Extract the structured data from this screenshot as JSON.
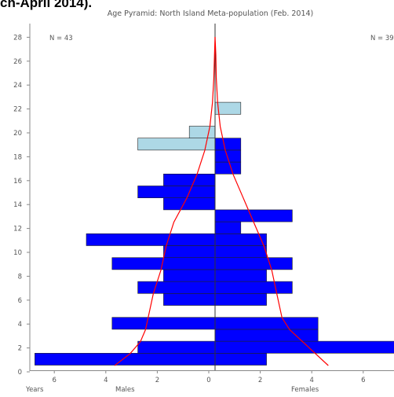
{
  "caption": "ch-April 2014).",
  "chart_data": {
    "type": "bar",
    "orientation": "horizontal",
    "title": "Age Pyramid: North Island Meta-population (Feb. 2014)",
    "y_ticks": [
      0,
      2,
      4,
      6,
      8,
      10,
      12,
      14,
      16,
      18,
      20,
      22,
      24,
      26,
      28
    ],
    "x_tick_labels": [
      "6",
      "4",
      "2",
      "0",
      "2",
      "4",
      "6"
    ],
    "xlim": [
      -7,
      7
    ],
    "ylim": [
      -0.5,
      29
    ],
    "y_axis_label": "Years",
    "left_label": "Males",
    "right_label": "Females",
    "n_left": "N = 43",
    "n_right": "N = 39",
    "colors": {
      "adult": "#0000ff",
      "young": "#add8e6",
      "curve": "#ff0000"
    },
    "males": {
      "1": 7,
      "2": 3,
      "4": 4,
      "6": 2,
      "7": 3,
      "8": 2,
      "9": 4,
      "10": 2,
      "11": 5,
      "14": 2,
      "15": 3,
      "16": 2
    },
    "females": {
      "1": 2,
      "2": 7,
      "3": 4,
      "4": 4,
      "6": 2,
      "7": 3,
      "8": 2,
      "9": 3,
      "10": 2,
      "11": 2,
      "12": 1,
      "13": 3,
      "17": 1,
      "18": 1,
      "19": 1
    },
    "young_males": {
      "19": 3,
      "20": 1
    },
    "young_females": {
      "22": 1
    },
    "curve_males": [
      [
        0,
        3.9
      ],
      [
        1,
        3.3
      ],
      [
        2,
        2.9
      ],
      [
        3,
        2.7
      ],
      [
        4,
        2.6
      ],
      [
        6,
        2.4
      ],
      [
        8,
        2.1
      ],
      [
        10,
        1.9
      ],
      [
        12,
        1.6
      ],
      [
        14,
        1.1
      ],
      [
        16,
        0.7
      ],
      [
        18,
        0.4
      ],
      [
        20,
        0.2
      ],
      [
        22,
        0.1
      ],
      [
        24,
        0.05
      ],
      [
        26,
        0.02
      ],
      [
        27.5,
        0
      ]
    ],
    "curve_females": [
      [
        27.5,
        0
      ],
      [
        26,
        0.03
      ],
      [
        24,
        0.05
      ],
      [
        22,
        0.1
      ],
      [
        20,
        0.2
      ],
      [
        18,
        0.4
      ],
      [
        16,
        0.7
      ],
      [
        14,
        1.1
      ],
      [
        12,
        1.5
      ],
      [
        10,
        1.9
      ],
      [
        8,
        2.2
      ],
      [
        6,
        2.4
      ],
      [
        4,
        2.6
      ],
      [
        3,
        2.9
      ],
      [
        2,
        3.4
      ],
      [
        1,
        3.9
      ],
      [
        0,
        4.4
      ]
    ]
  }
}
